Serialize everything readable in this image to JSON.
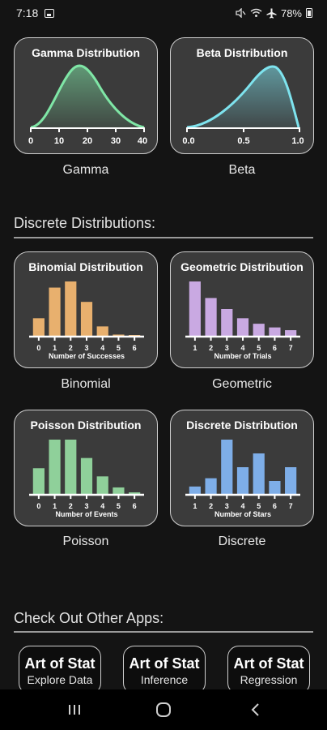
{
  "status": {
    "time": "7:18",
    "battery": "78%",
    "icons": [
      "gallery-icon",
      "mute-icon",
      "wifi-icon",
      "airplane-icon",
      "battery-icon"
    ]
  },
  "continuous_cards": [
    {
      "title": "Gamma Distribution",
      "label": "Gamma",
      "ticks": [
        "0",
        "10",
        "20",
        "30",
        "40"
      ],
      "color": "#7fe6a6"
    },
    {
      "title": "Beta Distribution",
      "label": "Beta",
      "ticks": [
        "0.0",
        "0.5",
        "1.0"
      ],
      "color": "#7ee3ee"
    }
  ],
  "discrete_section": {
    "title": "Discrete Distributions:"
  },
  "discrete_cards": [
    {
      "title": "Binomial Distribution",
      "label": "Binomial",
      "xlabel": "Number of Successes",
      "categories": [
        "0",
        "1",
        "2",
        "3",
        "4",
        "5",
        "6"
      ],
      "values": [
        0.09,
        0.24,
        0.27,
        0.17,
        0.05,
        0.01,
        0.003
      ],
      "color": "#e8b06e"
    },
    {
      "title": "Geometric Distribution",
      "label": "Geometric",
      "xlabel": "Number of Trials",
      "categories": [
        "1",
        "2",
        "3",
        "4",
        "5",
        "6",
        "7"
      ],
      "values": [
        0.3,
        0.21,
        0.15,
        0.1,
        0.07,
        0.05,
        0.035
      ],
      "color": "#c9a9e2"
    },
    {
      "title": "Poisson Distribution",
      "label": "Poisson",
      "xlabel": "Number of Events",
      "categories": [
        "0",
        "1",
        "2",
        "3",
        "4",
        "5",
        "6"
      ],
      "values": [
        0.13,
        0.27,
        0.27,
        0.18,
        0.09,
        0.036,
        0.012
      ],
      "color": "#8fd09a"
    },
    {
      "title": "Discrete Distribution",
      "label": "Discrete",
      "xlabel": "Number of Stars",
      "categories": [
        "1",
        "2",
        "3",
        "4",
        "5",
        "6",
        "7"
      ],
      "values": [
        0.03,
        0.06,
        0.2,
        0.1,
        0.15,
        0.05,
        0.1
      ],
      "color": "#7eaee8"
    }
  ],
  "apps_section": {
    "title": "Check Out Other Apps:",
    "apps": [
      {
        "name": "Art of Stat",
        "sub": "Explore Data"
      },
      {
        "name": "Art of Stat",
        "sub": "Inference"
      },
      {
        "name": "Art of Stat",
        "sub": "Regression"
      }
    ]
  },
  "navbar": {
    "icons": [
      "recent-apps-icon",
      "home-icon",
      "back-icon"
    ]
  }
}
